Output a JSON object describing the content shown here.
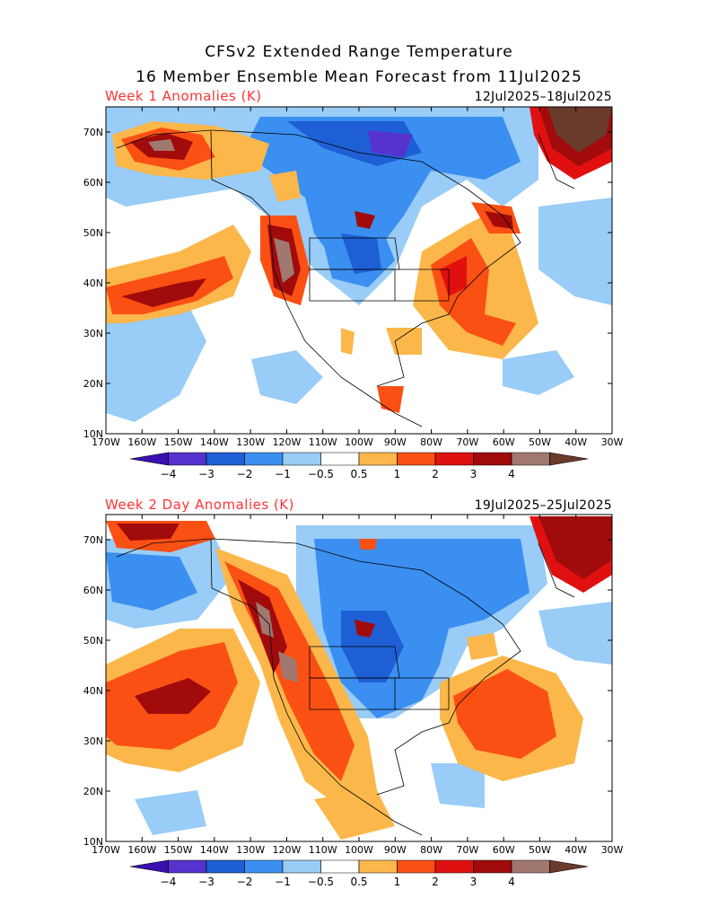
{
  "title": {
    "line1": "CFSv2 Extended Range Temperature",
    "line2": "16 Member Ensemble Mean Forecast from 11Jul2025"
  },
  "panels": [
    {
      "label": "Week 1 Anomalies (K)",
      "date_range": "12Jul2025–18Jul2025"
    },
    {
      "label": "Week 2 Day Anomalies (K)",
      "date_range": "19Jul2025–25Jul2025"
    }
  ],
  "axes": {
    "lon_labels": [
      "170W",
      "160W",
      "150W",
      "140W",
      "130W",
      "120W",
      "110W",
      "100W",
      "90W",
      "80W",
      "70W",
      "60W",
      "50W",
      "40W",
      "30W"
    ],
    "lat_labels": [
      "70N",
      "60N",
      "50N",
      "40N",
      "30N",
      "20N",
      "10N"
    ]
  },
  "colorbar": {
    "colors": [
      "#3a10b0",
      "#5533cc",
      "#1f5fd6",
      "#3a8ff0",
      "#99ccf7",
      "#ffffff",
      "#fbb74a",
      "#fb5014",
      "#e01010",
      "#a10b0b",
      "#a07870",
      "#6a3a2c"
    ],
    "labels": [
      "−4",
      "−3",
      "−2",
      "−1",
      "−0.5",
      "0.5",
      "1",
      "2",
      "3",
      "4"
    ]
  },
  "palette": {
    "c_m4": "#3a10b0",
    "c_m3": "#5533cc",
    "c_m2": "#1f5fd6",
    "c_m1": "#3a8ff0",
    "c_m05": "#99ccf7",
    "c_p05": "#fbb74a",
    "c_p1": "#fb5014",
    "c_p2": "#e01010",
    "c_p3": "#a10b0b",
    "c_p4": "#a07870"
  }
}
